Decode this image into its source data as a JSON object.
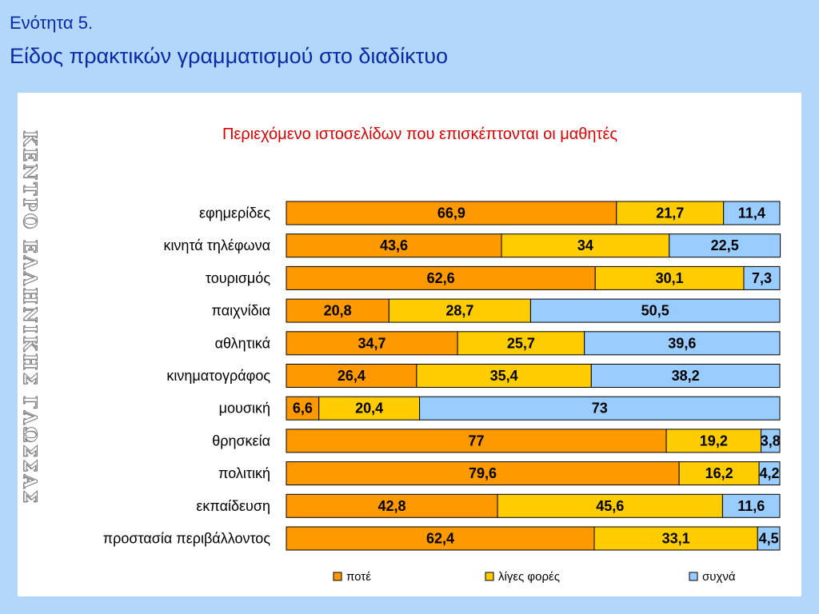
{
  "header": {
    "section": "Ενότητα 5.",
    "title": "Είδος πρακτικών γραμματισμού στο διαδίκτυο"
  },
  "watermark": {
    "text": "ΚΕΝΤΡΟ ΕΛΛΗΝΙΚΗΣ ΓΛΩΣΣΑΣ"
  },
  "chart_data": {
    "type": "bar",
    "orientation": "horizontal",
    "stacked": true,
    "title": "Περιεχόμενο ιστοσελίδων που επισκέπτονται οι μαθητές",
    "categories": [
      "εφημερίδες",
      "κινητά τηλέφωνα",
      "τουρισμός",
      "παιχνίδια",
      "αθλητικά",
      "κινηματογράφος",
      "μουσική",
      "θρησκεία",
      "πολιτική",
      "εκπαίδευση",
      "προστασία περιβάλλοντος"
    ],
    "series": [
      {
        "name": "ποτέ",
        "color": "#ff9900",
        "values": [
          66.9,
          43.6,
          62.6,
          20.8,
          34.7,
          26.4,
          6.6,
          77,
          79.6,
          42.8,
          62.4
        ],
        "labels": [
          "66,9",
          "43,6",
          "62,6",
          "20,8",
          "34,7",
          "26,4",
          "6,6",
          "77",
          "79,6",
          "42,8",
          "62,4"
        ]
      },
      {
        "name": "λίγες φορές",
        "color": "#ffcc00",
        "values": [
          21.7,
          34,
          30.1,
          28.7,
          25.7,
          35.4,
          20.4,
          19.2,
          16.2,
          45.6,
          33.1
        ],
        "labels": [
          "21,7",
          "34",
          "30,1",
          "28,7",
          "25,7",
          "35,4",
          "20,4",
          "19,2",
          "16,2",
          "45,6",
          "33,1"
        ]
      },
      {
        "name": "συχνά",
        "color": "#99ccff",
        "values": [
          11.4,
          22.5,
          7.3,
          50.5,
          39.6,
          38.2,
          73,
          3.8,
          4.2,
          11.6,
          4.5
        ],
        "labels": [
          "11,4",
          "22,5",
          "7,3",
          "50,5",
          "39,6",
          "38,2",
          "73",
          "3,8",
          "4,2",
          "11,6",
          "4,5"
        ]
      }
    ],
    "xlim": [
      0,
      100
    ],
    "grid": false,
    "legend": "bottom"
  }
}
